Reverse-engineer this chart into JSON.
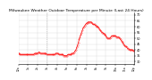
{
  "title": "Milwaukee Weather Outdoor Temperature per Minute (Last 24 Hours)",
  "title_fontsize": 3.2,
  "line_color": "#ff0000",
  "background_color": "#ffffff",
  "grid_color": "#cccccc",
  "vline_x": 35,
  "vline_color": "#aaaaaa",
  "vline_style": "dotted",
  "ylim": [
    28,
    72
  ],
  "yticks": [
    30,
    35,
    40,
    45,
    50,
    55,
    60,
    65,
    70
  ],
  "ytick_fontsize": 2.5,
  "xtick_fontsize": 2.2,
  "x_values": [
    0,
    1,
    2,
    3,
    4,
    5,
    6,
    7,
    8,
    9,
    10,
    11,
    12,
    13,
    14,
    15,
    16,
    17,
    18,
    19,
    20,
    21,
    22,
    23,
    24,
    25,
    26,
    27,
    28,
    29,
    30,
    31,
    32,
    33,
    34,
    35,
    36,
    37,
    38,
    39,
    40,
    41,
    42,
    43,
    44,
    45,
    46,
    47,
    48,
    49,
    50,
    51,
    52,
    53,
    54,
    55,
    56,
    57,
    58,
    59,
    60,
    61,
    62,
    63,
    64,
    65,
    66,
    67,
    68,
    69,
    70,
    71,
    72,
    73,
    74,
    75,
    76,
    77,
    78,
    79,
    80,
    81,
    82,
    83,
    84,
    85,
    86,
    87,
    88,
    89,
    90,
    91,
    92,
    93,
    94,
    95,
    96,
    97,
    98,
    99,
    100,
    101,
    102,
    103,
    104,
    105,
    106,
    107,
    108,
    109,
    110,
    111,
    112,
    113,
    114,
    115,
    116,
    117,
    118,
    119,
    120,
    121,
    122,
    123,
    124,
    125,
    126,
    127,
    128,
    129,
    130,
    131,
    132,
    133,
    134,
    135,
    136,
    137,
    138,
    139,
    140,
    141,
    142,
    143
  ],
  "y_values": [
    37,
    37,
    36,
    36,
    36,
    36,
    36,
    36,
    36,
    36,
    36,
    36,
    36,
    36,
    36,
    36,
    36,
    36,
    36,
    36,
    37,
    37,
    37,
    37,
    37,
    38,
    38,
    37,
    37,
    37,
    37,
    37,
    37,
    37,
    37,
    36,
    36,
    36,
    36,
    36,
    36,
    36,
    36,
    36,
    36,
    36,
    37,
    37,
    37,
    37,
    36,
    36,
    36,
    36,
    36,
    36,
    35,
    35,
    35,
    35,
    35,
    36,
    36,
    36,
    36,
    36,
    37,
    37,
    37,
    38,
    39,
    40,
    42,
    44,
    46,
    49,
    51,
    53,
    55,
    57,
    59,
    60,
    61,
    62,
    63,
    63,
    64,
    64,
    64,
    64,
    64,
    63,
    62,
    62,
    62,
    61,
    61,
    60,
    60,
    59,
    58,
    57,
    56,
    55,
    55,
    54,
    54,
    53,
    52,
    51,
    50,
    50,
    50,
    50,
    51,
    52,
    52,
    52,
    52,
    52,
    52,
    51,
    51,
    51,
    51,
    50,
    49,
    48,
    47,
    46,
    45,
    44,
    43,
    43,
    42,
    41,
    41,
    40,
    40,
    40,
    40,
    40,
    39,
    39
  ],
  "xtick_positions": [
    0,
    12,
    24,
    36,
    48,
    60,
    72,
    84,
    96,
    108,
    120,
    132,
    143
  ],
  "xtick_labels": [
    "12a",
    "1a",
    "2a",
    "3a",
    "4a",
    "5a",
    "6a",
    "7a",
    "8a",
    "9a",
    "10a",
    "11a",
    "12p"
  ]
}
